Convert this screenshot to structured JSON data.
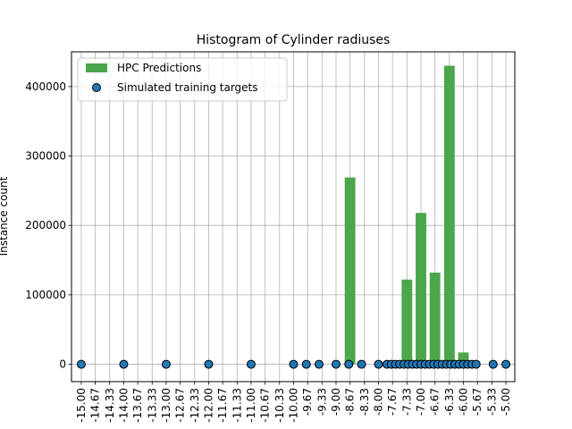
{
  "chart_data": {
    "type": "bar",
    "title": "Histogram of Cylinder radiuses",
    "xlabel": "",
    "ylabel": "Instance count",
    "grid": true,
    "legend_placement": "top-left",
    "xlim": [
      -15.23,
      -4.79
    ],
    "ylim": [
      -25000,
      450000
    ],
    "yticks": [
      0,
      100000,
      200000,
      300000,
      400000
    ],
    "xtick_labels": [
      "-15.00",
      "-14.67",
      "-14.33",
      "-14.00",
      "-13.67",
      "-13.33",
      "-13.00",
      "-12.67",
      "-12.33",
      "-12.00",
      "-11.67",
      "-11.33",
      "-11.00",
      "-10.67",
      "-10.33",
      "-10.00",
      "-9.67",
      "-9.33",
      "-9.00",
      "-8.67",
      "-8.33",
      "-8.00",
      "-7.67",
      "-7.33",
      "-7.00",
      "-6.67",
      "-6.33",
      "-6.00",
      "-5.67",
      "-5.33",
      "-5.00"
    ],
    "series": [
      {
        "name": "HPC Predictions",
        "kind": "bar",
        "color": "#4ca64c",
        "bar_width": 0.25,
        "points": [
          {
            "x": -8.67,
            "y": 269000
          },
          {
            "x": -7.33,
            "y": 122000
          },
          {
            "x": -7.0,
            "y": 218000
          },
          {
            "x": -6.67,
            "y": 132000
          },
          {
            "x": -6.33,
            "y": 430000
          },
          {
            "x": -6.0,
            "y": 17000
          }
        ]
      },
      {
        "name": "Simulated training targets",
        "kind": "scatter",
        "color": "#1f77b4",
        "edge_color": "#000000",
        "points": [
          {
            "x": -15.0,
            "y": 0
          },
          {
            "x": -14.0,
            "y": 0
          },
          {
            "x": -13.0,
            "y": 0
          },
          {
            "x": -12.0,
            "y": 0
          },
          {
            "x": -11.0,
            "y": 0
          },
          {
            "x": -10.0,
            "y": 0
          },
          {
            "x": -9.7,
            "y": 0
          },
          {
            "x": -9.4,
            "y": 0
          },
          {
            "x": -9.0,
            "y": 0
          },
          {
            "x": -8.7,
            "y": 0
          },
          {
            "x": -8.4,
            "y": 0
          },
          {
            "x": -8.0,
            "y": 0
          },
          {
            "x": -7.8,
            "y": 0
          },
          {
            "x": -7.7,
            "y": 0
          },
          {
            "x": -7.6,
            "y": 0
          },
          {
            "x": -7.5,
            "y": 0
          },
          {
            "x": -7.4,
            "y": 0
          },
          {
            "x": -7.3,
            "y": 0
          },
          {
            "x": -7.2,
            "y": 0
          },
          {
            "x": -7.1,
            "y": 0
          },
          {
            "x": -7.0,
            "y": 0
          },
          {
            "x": -6.9,
            "y": 0
          },
          {
            "x": -6.8,
            "y": 0
          },
          {
            "x": -6.7,
            "y": 0
          },
          {
            "x": -6.6,
            "y": 0
          },
          {
            "x": -6.5,
            "y": 0
          },
          {
            "x": -6.4,
            "y": 0
          },
          {
            "x": -6.3,
            "y": 0
          },
          {
            "x": -6.2,
            "y": 0
          },
          {
            "x": -6.1,
            "y": 0
          },
          {
            "x": -6.0,
            "y": 0
          },
          {
            "x": -5.9,
            "y": 0
          },
          {
            "x": -5.8,
            "y": 0
          },
          {
            "x": -5.7,
            "y": 0
          },
          {
            "x": -5.0,
            "y": 0
          },
          {
            "x": -5.3,
            "y": 0
          }
        ]
      }
    ]
  }
}
